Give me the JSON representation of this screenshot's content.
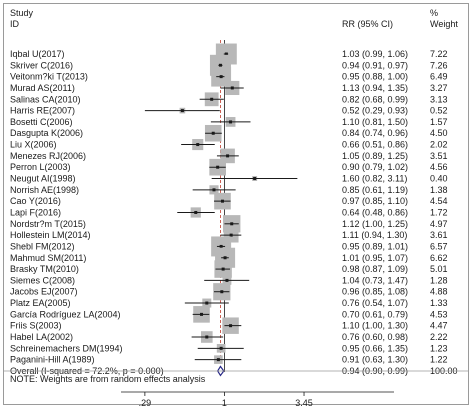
{
  "chart_data": {
    "type": "forest",
    "header": {
      "study_line1": "Study",
      "study_line2": "ID",
      "rr_label": "RR (95% CI)",
      "weight_line1": "%",
      "weight_line2": "Weight"
    },
    "scale": "log",
    "xlim": [
      0.2,
      5.5
    ],
    "x_ticks": [
      0.29,
      1,
      3.45
    ],
    "x_tick_labels": [
      ".29",
      "1",
      "3.45"
    ],
    "pooled_rr": 0.94,
    "studies": [
      {
        "id": "Iqbal U(2017)",
        "rr": 1.03,
        "lo": 0.99,
        "hi": 1.06,
        "ci_text": "1.03 (0.99, 1.06)",
        "weight": 7.22,
        "weight_text": "7.22"
      },
      {
        "id": "Skriver C(2016)",
        "rr": 0.94,
        "lo": 0.91,
        "hi": 0.97,
        "ci_text": "0.94 (0.91, 0.97)",
        "weight": 7.26,
        "weight_text": "7.26"
      },
      {
        "id": "Veitonm?ki T(2013)",
        "rr": 0.95,
        "lo": 0.88,
        "hi": 1.0,
        "ci_text": "0.95 (0.88, 1.00)",
        "weight": 6.49,
        "weight_text": "6.49"
      },
      {
        "id": "Murad AS(2011)",
        "rr": 1.13,
        "lo": 0.94,
        "hi": 1.35,
        "ci_text": "1.13 (0.94, 1.35)",
        "weight": 3.27,
        "weight_text": "3.27"
      },
      {
        "id": "Salinas CA(2010)",
        "rr": 0.82,
        "lo": 0.68,
        "hi": 0.99,
        "ci_text": "0.82 (0.68, 0.99)",
        "weight": 3.13,
        "weight_text": "3.13"
      },
      {
        "id": "Harris RE(2007)",
        "rr": 0.52,
        "lo": 0.29,
        "hi": 0.93,
        "ci_text": "0.52 (0.29, 0.93)",
        "weight": 0.52,
        "weight_text": "0.52"
      },
      {
        "id": "Bosetti C(2006)",
        "rr": 1.1,
        "lo": 0.81,
        "hi": 1.5,
        "ci_text": "1.10 (0.81, 1.50)",
        "weight": 1.57,
        "weight_text": "1.57"
      },
      {
        "id": "Dasgupta K(2006)",
        "rr": 0.84,
        "lo": 0.74,
        "hi": 0.96,
        "ci_text": "0.84 (0.74, 0.96)",
        "weight": 4.5,
        "weight_text": "4.50"
      },
      {
        "id": "Liu X(2006)",
        "rr": 0.66,
        "lo": 0.51,
        "hi": 0.86,
        "ci_text": "0.66 (0.51, 0.86)",
        "weight": 2.02,
        "weight_text": "2.02"
      },
      {
        "id": "Menezes RJ(2006)",
        "rr": 1.05,
        "lo": 0.89,
        "hi": 1.25,
        "ci_text": "1.05 (0.89, 1.25)",
        "weight": 3.51,
        "weight_text": "3.51"
      },
      {
        "id": "Perron L(2003)",
        "rr": 0.9,
        "lo": 0.79,
        "hi": 1.02,
        "ci_text": "0.90 (0.79, 1.02)",
        "weight": 4.56,
        "weight_text": "4.56"
      },
      {
        "id": "Neugut AI(1998)",
        "rr": 1.6,
        "lo": 0.82,
        "hi": 3.11,
        "ci_text": "1.60 (0.82, 3.11)",
        "weight": 0.4,
        "weight_text": "0.40"
      },
      {
        "id": "Norrish AE(1998)",
        "rr": 0.85,
        "lo": 0.61,
        "hi": 1.19,
        "ci_text": "0.85 (0.61, 1.19)",
        "weight": 1.38,
        "weight_text": "1.38"
      },
      {
        "id": "Cao Y(2016)",
        "rr": 0.97,
        "lo": 0.85,
        "hi": 1.1,
        "ci_text": "0.97 (0.85, 1.10)",
        "weight": 4.54,
        "weight_text": "4.54"
      },
      {
        "id": "Lapi F(2016)",
        "rr": 0.64,
        "lo": 0.48,
        "hi": 0.86,
        "ci_text": "0.64 (0.48, 0.86)",
        "weight": 1.72,
        "weight_text": "1.72"
      },
      {
        "id": "Nordstr?m T(2015)",
        "rr": 1.12,
        "lo": 1.0,
        "hi": 1.25,
        "ci_text": "1.12 (1.00, 1.25)",
        "weight": 4.97,
        "weight_text": "4.97"
      },
      {
        "id": "Hollestein LM(2014)",
        "rr": 1.11,
        "lo": 0.94,
        "hi": 1.3,
        "ci_text": "1.11 (0.94, 1.30)",
        "weight": 3.61,
        "weight_text": "3.61"
      },
      {
        "id": "Shebl FM(2012)",
        "rr": 0.95,
        "lo": 0.89,
        "hi": 1.01,
        "ci_text": "0.95 (0.89, 1.01)",
        "weight": 6.57,
        "weight_text": "6.57"
      },
      {
        "id": "Mahmud SM(2011)",
        "rr": 1.01,
        "lo": 0.95,
        "hi": 1.07,
        "ci_text": "1.01 (0.95, 1.07)",
        "weight": 6.62,
        "weight_text": "6.62"
      },
      {
        "id": "Brasky TM(2010)",
        "rr": 0.98,
        "lo": 0.87,
        "hi": 1.09,
        "ci_text": "0.98 (0.87, 1.09)",
        "weight": 5.01,
        "weight_text": "5.01"
      },
      {
        "id": "Siemes C(2008)",
        "rr": 1.04,
        "lo": 0.73,
        "hi": 1.47,
        "ci_text": "1.04 (0.73, 1.47)",
        "weight": 1.28,
        "weight_text": "1.28"
      },
      {
        "id": "Jacobs EJ(2007)",
        "rr": 0.96,
        "lo": 0.85,
        "hi": 1.08,
        "ci_text": "0.96 (0.85, 1.08)",
        "weight": 4.88,
        "weight_text": "4.88"
      },
      {
        "id": "Platz EA(2005)",
        "rr": 0.76,
        "lo": 0.54,
        "hi": 1.07,
        "ci_text": "0.76 (0.54, 1.07)",
        "weight": 1.33,
        "weight_text": "1.33"
      },
      {
        "id": "García Rodríguez LA(2004)",
        "rr": 0.7,
        "lo": 0.61,
        "hi": 0.79,
        "ci_text": "0.70 (0.61, 0.79)",
        "weight": 4.53,
        "weight_text": "4.53"
      },
      {
        "id": "Friis S(2003)",
        "rr": 1.1,
        "lo": 1.0,
        "hi": 1.3,
        "ci_text": "1.10 (1.00, 1.30)",
        "weight": 4.47,
        "weight_text": "4.47"
      },
      {
        "id": "Habel LA(2002)",
        "rr": 0.76,
        "lo": 0.6,
        "hi": 0.98,
        "ci_text": "0.76 (0.60, 0.98)",
        "weight": 2.22,
        "weight_text": "2.22"
      },
      {
        "id": "Schreinemachers DM(1994)",
        "rr": 0.95,
        "lo": 0.66,
        "hi": 1.35,
        "ci_text": "0.95 (0.66, 1.35)",
        "weight": 1.23,
        "weight_text": "1.23"
      },
      {
        "id": "Paganini-Hill A(1989)",
        "rr": 0.91,
        "lo": 0.63,
        "hi": 1.3,
        "ci_text": "0.91 (0.63, 1.30)",
        "weight": 1.22,
        "weight_text": "1.22"
      }
    ],
    "overall": {
      "label": "Overall  (I-squared = 72.2%, p = 0.000)",
      "rr": 0.94,
      "lo": 0.9,
      "hi": 0.99,
      "ci_text": "0.94 (0.90, 0.99)",
      "weight_text": "100.00"
    },
    "note": "NOTE: Weights are from random effects analysis",
    "colors": {
      "box": "#b8b8b8",
      "ci_line": "#1a1a1a",
      "null_line": "#1a1a1a",
      "pooled_line": "#c0392b",
      "diamond": "#2a2a88",
      "frame": "#9a9a9a"
    }
  }
}
